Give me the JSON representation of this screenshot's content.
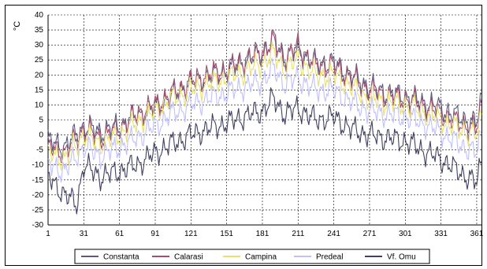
{
  "chart_data": {
    "type": "line",
    "title": "",
    "xlabel": "",
    "ylabel": "°C",
    "xlim": [
      1,
      365
    ],
    "ylim": [
      -30,
      40
    ],
    "x_ticks": [
      "1",
      "31",
      "61",
      "91",
      "121",
      "151",
      "181",
      "211",
      "241",
      "271",
      "301",
      "331",
      "361"
    ],
    "y_ticks": [
      "40",
      "35",
      "30",
      "25",
      "20",
      "15",
      "10",
      "5",
      "0",
      "-5",
      "-10",
      "-15",
      "-20",
      "-25",
      "-30"
    ],
    "grid": true,
    "legend_position": "bottom",
    "series": [
      {
        "name": "Constanta",
        "color": "#5a5a80",
        "points": [
          [
            1,
            -2
          ],
          [
            15,
            -4
          ],
          [
            31,
            3
          ],
          [
            45,
            1
          ],
          [
            61,
            3
          ],
          [
            75,
            6
          ],
          [
            91,
            9
          ],
          [
            105,
            13
          ],
          [
            121,
            17
          ],
          [
            135,
            19
          ],
          [
            151,
            21
          ],
          [
            165,
            24
          ],
          [
            181,
            27
          ],
          [
            190,
            32
          ],
          [
            200,
            26
          ],
          [
            211,
            28
          ],
          [
            225,
            24
          ],
          [
            241,
            24
          ],
          [
            255,
            20
          ],
          [
            271,
            16
          ],
          [
            285,
            14
          ],
          [
            301,
            13
          ],
          [
            315,
            11
          ],
          [
            331,
            9
          ],
          [
            345,
            6
          ],
          [
            361,
            4
          ],
          [
            365,
            12
          ]
        ]
      },
      {
        "name": "Calarasi",
        "color": "#a0506e",
        "points": [
          [
            1,
            -4
          ],
          [
            15,
            -6
          ],
          [
            31,
            2
          ],
          [
            45,
            -1
          ],
          [
            61,
            2
          ],
          [
            75,
            7
          ],
          [
            91,
            10
          ],
          [
            105,
            14
          ],
          [
            121,
            18
          ],
          [
            135,
            20
          ],
          [
            151,
            22
          ],
          [
            165,
            25
          ],
          [
            181,
            28
          ],
          [
            190,
            31
          ],
          [
            200,
            25
          ],
          [
            211,
            30
          ],
          [
            225,
            23
          ],
          [
            241,
            23
          ],
          [
            255,
            19
          ],
          [
            271,
            15
          ],
          [
            285,
            13
          ],
          [
            301,
            12
          ],
          [
            315,
            10
          ],
          [
            331,
            7
          ],
          [
            345,
            4
          ],
          [
            361,
            2
          ],
          [
            365,
            10
          ]
        ]
      },
      {
        "name": "Campina",
        "color": "#e8e070",
        "points": [
          [
            1,
            -6
          ],
          [
            15,
            -8
          ],
          [
            31,
            0
          ],
          [
            45,
            -3
          ],
          [
            61,
            0
          ],
          [
            75,
            4
          ],
          [
            91,
            8
          ],
          [
            105,
            12
          ],
          [
            121,
            15
          ],
          [
            135,
            17
          ],
          [
            151,
            19
          ],
          [
            165,
            21
          ],
          [
            181,
            24
          ],
          [
            190,
            27
          ],
          [
            200,
            22
          ],
          [
            211,
            25
          ],
          [
            225,
            20
          ],
          [
            241,
            20
          ],
          [
            255,
            16
          ],
          [
            271,
            12
          ],
          [
            285,
            11
          ],
          [
            301,
            10
          ],
          [
            315,
            8
          ],
          [
            331,
            5
          ],
          [
            345,
            2
          ],
          [
            361,
            0
          ],
          [
            365,
            7
          ]
        ]
      },
      {
        "name": "Predeal",
        "color": "#c0c0ff",
        "points": [
          [
            1,
            -10
          ],
          [
            15,
            -12
          ],
          [
            31,
            -4
          ],
          [
            45,
            -7
          ],
          [
            61,
            -4
          ],
          [
            75,
            -1
          ],
          [
            91,
            3
          ],
          [
            105,
            7
          ],
          [
            121,
            10
          ],
          [
            135,
            12
          ],
          [
            151,
            14
          ],
          [
            165,
            16
          ],
          [
            181,
            18
          ],
          [
            190,
            22
          ],
          [
            200,
            17
          ],
          [
            211,
            19
          ],
          [
            225,
            15
          ],
          [
            241,
            15
          ],
          [
            255,
            11
          ],
          [
            271,
            8
          ],
          [
            285,
            7
          ],
          [
            301,
            6
          ],
          [
            315,
            4
          ],
          [
            331,
            1
          ],
          [
            345,
            -3
          ],
          [
            361,
            -6
          ],
          [
            365,
            1
          ]
        ]
      },
      {
        "name": "Vf. Omu",
        "color": "#404060",
        "points": [
          [
            1,
            -14
          ],
          [
            15,
            -20
          ],
          [
            25,
            -23
          ],
          [
            31,
            -10
          ],
          [
            45,
            -14
          ],
          [
            61,
            -12
          ],
          [
            75,
            -10
          ],
          [
            91,
            -6
          ],
          [
            105,
            -3
          ],
          [
            121,
            0
          ],
          [
            135,
            2
          ],
          [
            151,
            4
          ],
          [
            165,
            6
          ],
          [
            181,
            8
          ],
          [
            190,
            12
          ],
          [
            200,
            7
          ],
          [
            211,
            9
          ],
          [
            225,
            5
          ],
          [
            241,
            6
          ],
          [
            255,
            2
          ],
          [
            271,
            0
          ],
          [
            285,
            -1
          ],
          [
            301,
            -2
          ],
          [
            315,
            -5
          ],
          [
            331,
            -8
          ],
          [
            345,
            -12
          ],
          [
            361,
            -16
          ],
          [
            365,
            -8
          ]
        ]
      }
    ]
  }
}
